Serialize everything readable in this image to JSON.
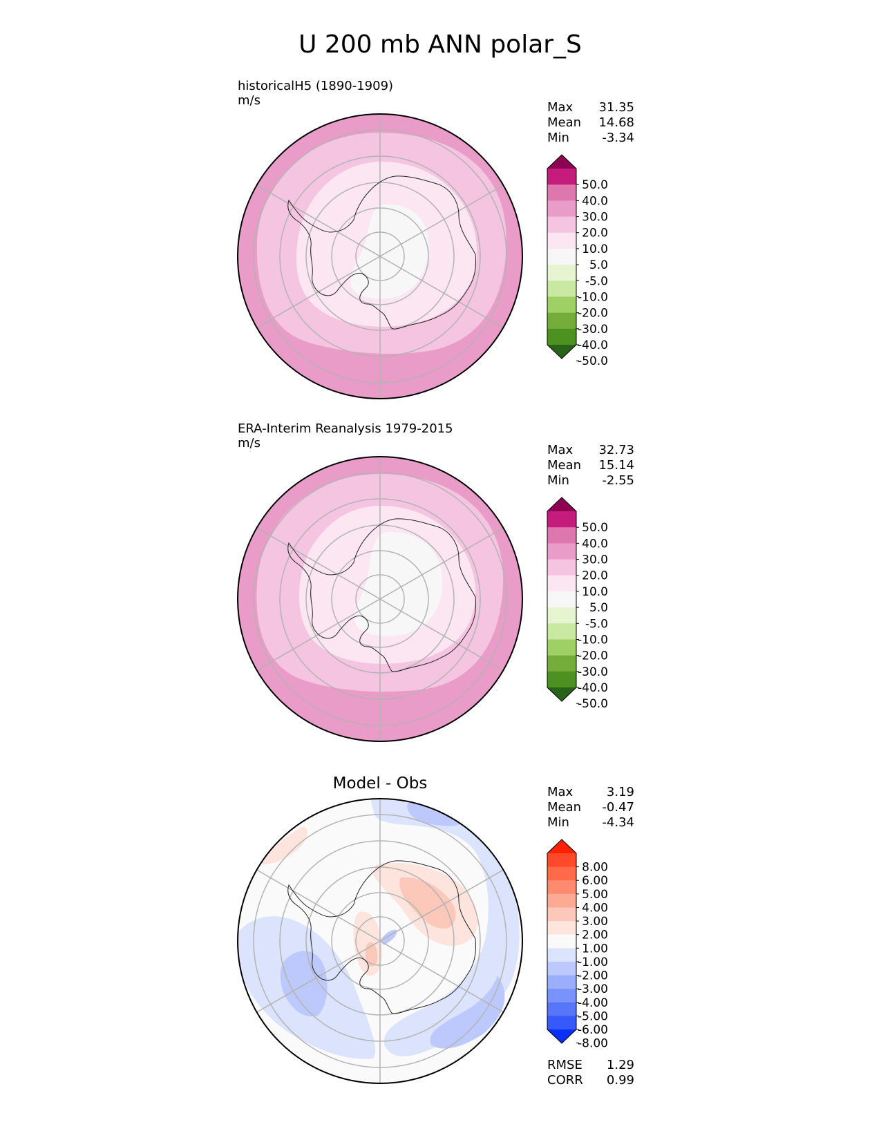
{
  "title": "U 200 mb ANN polar_S",
  "chart_data": [
    {
      "type": "heatmap",
      "projection": "south-polar-stereographic",
      "title": "historicalH5 (1890-1909)",
      "units": "m/s",
      "stats": [
        {
          "label": "Max",
          "value": "31.35"
        },
        {
          "label": "Mean",
          "value": "14.68"
        },
        {
          "label": "Min",
          "value": "-3.34"
        }
      ],
      "colorbar": {
        "ticks": [
          "50.0",
          "40.0",
          "30.0",
          "20.0",
          "10.0",
          "5.0",
          "-5.0",
          "-10.0",
          "-20.0",
          "-30.0",
          "-40.0",
          "-50.0"
        ],
        "colors": [
          "#8e0152",
          "#c51b7d",
          "#de77ae",
          "#e99cc7",
          "#f4c4e0",
          "#fbe6f1",
          "#f7f7f7",
          "#e6f5d0",
          "#c9e8a2",
          "#9fd066",
          "#74ad3a",
          "#4d9221",
          "#276419"
        ],
        "extend": "both"
      },
      "contour_levels_ms": [
        20,
        10,
        5
      ],
      "field_value_ms": {
        "outer_ring": 22,
        "mid_ring": 14,
        "inner_ring": 7,
        "center": 0
      }
    },
    {
      "type": "heatmap",
      "projection": "south-polar-stereographic",
      "title": "ERA-Interim Reanalysis 1979-2015",
      "units": "m/s",
      "stats": [
        {
          "label": "Max",
          "value": "32.73"
        },
        {
          "label": "Mean",
          "value": "15.14"
        },
        {
          "label": "Min",
          "value": "-2.55"
        }
      ],
      "colorbar": {
        "ticks": [
          "50.0",
          "40.0",
          "30.0",
          "20.0",
          "10.0",
          "5.0",
          "-5.0",
          "-10.0",
          "-20.0",
          "-30.0",
          "-40.0",
          "-50.0"
        ],
        "colors": [
          "#8e0152",
          "#c51b7d",
          "#de77ae",
          "#e99cc7",
          "#f4c4e0",
          "#fbe6f1",
          "#f7f7f7",
          "#e6f5d0",
          "#c9e8a2",
          "#9fd066",
          "#74ad3a",
          "#4d9221",
          "#276419"
        ],
        "extend": "both"
      },
      "contour_levels_ms": [
        20,
        10,
        5
      ],
      "field_value_ms": {
        "outer_ring": 22,
        "mid_ring": 14,
        "inner_ring": 7,
        "center": 0
      }
    },
    {
      "type": "heatmap",
      "projection": "south-polar-stereographic",
      "title": "Model - Obs",
      "stats": [
        {
          "label": "Max",
          "value": "3.19"
        },
        {
          "label": "Mean",
          "value": "-0.47"
        },
        {
          "label": "Min",
          "value": "-4.34"
        }
      ],
      "colorbar": {
        "ticks": [
          "8.00",
          "6.00",
          "5.00",
          "4.00",
          "3.00",
          "2.00",
          "1.00",
          "-1.00",
          "-2.00",
          "-3.00",
          "-4.00",
          "-5.00",
          "-6.00",
          "-8.00"
        ],
        "colors": [
          "#ff2200",
          "#fe4a2a",
          "#ff6a4a",
          "#fe8a6f",
          "#fdaa94",
          "#fcc8b9",
          "#fde4dd",
          "#fafafa",
          "#dce3fd",
          "#bdc9fc",
          "#9baefc",
          "#7a92fb",
          "#5876fa",
          "#3759f9",
          "#0b2ffb"
        ],
        "extend": "both"
      },
      "bottom_stats": [
        {
          "label": "RMSE",
          "value": "1.29"
        },
        {
          "label": "CORR",
          "value": "0.99"
        }
      ]
    }
  ]
}
